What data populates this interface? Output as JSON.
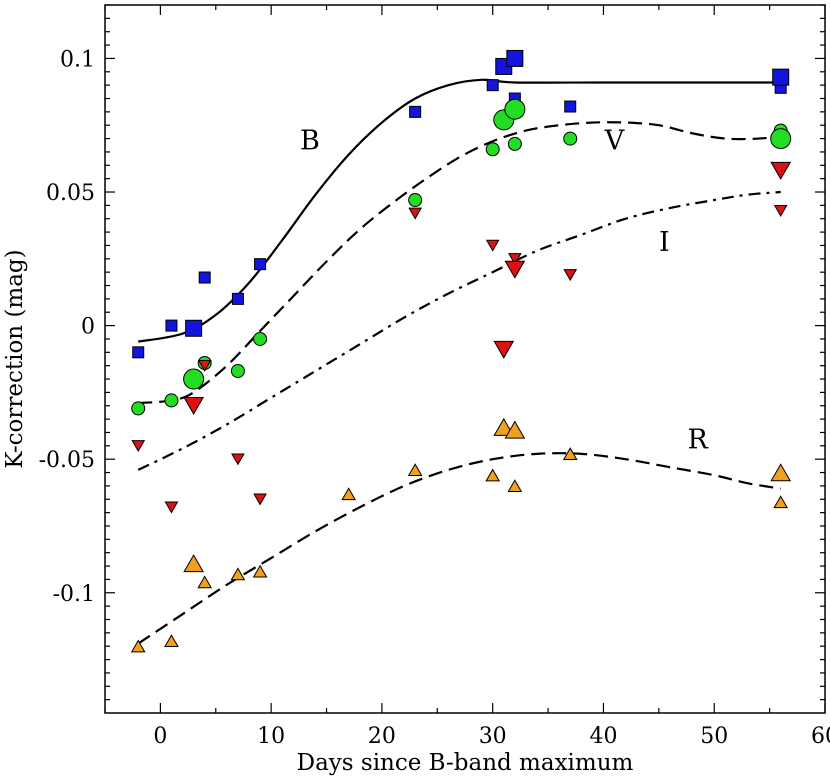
{
  "chart_data": {
    "type": "scatter",
    "title": "",
    "xlabel": "Days since B-band maximum",
    "ylabel": "K-correction (mag)",
    "xlim": [
      -5,
      60
    ],
    "ylim": [
      -0.145,
      0.12
    ],
    "x_ticks": [
      0,
      10,
      20,
      30,
      40,
      50,
      60
    ],
    "x_tick_labels": [
      "0",
      "10",
      "20",
      "30",
      "40",
      "50",
      "60"
    ],
    "y_ticks": [
      -0.1,
      -0.05,
      0,
      0.05,
      0.1
    ],
    "y_tick_labels": [
      "-0.1",
      "-0.05",
      "0",
      "0.05",
      "0.1"
    ],
    "grid": false,
    "series": [
      {
        "name": "B",
        "marker": "square",
        "color": "#1414dc",
        "points_small": [
          [
            -2,
            -0.01
          ],
          [
            1,
            0.0
          ],
          [
            4,
            0.018
          ],
          [
            7,
            0.01
          ],
          [
            9,
            0.023
          ],
          [
            23,
            0.08
          ],
          [
            30,
            0.09
          ],
          [
            32,
            0.085
          ],
          [
            37,
            0.082
          ],
          [
            56,
            0.089
          ]
        ],
        "points_large": [
          [
            3,
            -0.001
          ],
          [
            31,
            0.097
          ],
          [
            32,
            0.1
          ],
          [
            56,
            0.093
          ]
        ],
        "fit_style": "solid",
        "fit": [
          [
            -2,
            -0.006
          ],
          [
            2,
            -0.003
          ],
          [
            5,
            0.004
          ],
          [
            8,
            0.016
          ],
          [
            11,
            0.032
          ],
          [
            14,
            0.049
          ],
          [
            17,
            0.064
          ],
          [
            20,
            0.076
          ],
          [
            23,
            0.085
          ],
          [
            26,
            0.09
          ],
          [
            29,
            0.092
          ],
          [
            32,
            0.091
          ],
          [
            40,
            0.091
          ],
          [
            50,
            0.091
          ],
          [
            56,
            0.091
          ]
        ]
      },
      {
        "name": "V",
        "marker": "circle",
        "color": "#22dd22",
        "points_small": [
          [
            -2,
            -0.031
          ],
          [
            1,
            -0.028
          ],
          [
            4,
            -0.014
          ],
          [
            7,
            -0.017
          ],
          [
            9,
            -0.005
          ],
          [
            23,
            0.047
          ],
          [
            30,
            0.066
          ],
          [
            32,
            0.068
          ],
          [
            37,
            0.07
          ],
          [
            56,
            0.073
          ]
        ],
        "points_large": [
          [
            3,
            -0.02
          ],
          [
            31,
            0.077
          ],
          [
            32,
            0.081
          ],
          [
            56,
            0.07
          ]
        ],
        "fit_style": "dashed",
        "fit": [
          [
            -2,
            -0.029
          ],
          [
            1,
            -0.028
          ],
          [
            3,
            -0.025
          ],
          [
            6,
            -0.015
          ],
          [
            9,
            -0.002
          ],
          [
            12,
            0.011
          ],
          [
            15,
            0.024
          ],
          [
            18,
            0.036
          ],
          [
            21,
            0.046
          ],
          [
            24,
            0.055
          ],
          [
            27,
            0.063
          ],
          [
            30,
            0.069
          ],
          [
            33,
            0.073
          ],
          [
            36,
            0.075
          ],
          [
            39,
            0.076
          ],
          [
            42,
            0.076
          ],
          [
            45,
            0.075
          ],
          [
            48,
            0.072
          ],
          [
            51,
            0.07
          ],
          [
            54,
            0.07
          ],
          [
            56,
            0.071
          ]
        ]
      },
      {
        "name": "I",
        "marker": "triangle-down",
        "color": "#dd1111",
        "points_small": [
          [
            -2,
            -0.045
          ],
          [
            1,
            -0.068
          ],
          [
            4,
            -0.015
          ],
          [
            7,
            -0.05
          ],
          [
            9,
            -0.065
          ],
          [
            23,
            0.042
          ],
          [
            30,
            0.03
          ],
          [
            32,
            0.025
          ],
          [
            37,
            0.019
          ],
          [
            56,
            0.043
          ]
        ],
        "points_large": [
          [
            3,
            -0.03
          ],
          [
            31,
            -0.009
          ],
          [
            32,
            0.021
          ],
          [
            56,
            0.058
          ]
        ],
        "fit_style": "dashdot",
        "fit": [
          [
            -2,
            -0.054
          ],
          [
            2,
            -0.046
          ],
          [
            6,
            -0.037
          ],
          [
            10,
            -0.027
          ],
          [
            14,
            -0.017
          ],
          [
            18,
            -0.007
          ],
          [
            22,
            0.003
          ],
          [
            26,
            0.012
          ],
          [
            30,
            0.02
          ],
          [
            34,
            0.028
          ],
          [
            38,
            0.034
          ],
          [
            42,
            0.04
          ],
          [
            46,
            0.044
          ],
          [
            50,
            0.047
          ],
          [
            53,
            0.049
          ],
          [
            56,
            0.05
          ]
        ]
      },
      {
        "name": "R",
        "marker": "triangle-up",
        "color": "#f0a020",
        "points_small": [
          [
            -2,
            -0.12
          ],
          [
            1,
            -0.118
          ],
          [
            4,
            -0.096
          ],
          [
            7,
            -0.093
          ],
          [
            9,
            -0.092
          ],
          [
            17,
            -0.063
          ],
          [
            23,
            -0.054
          ],
          [
            30,
            -0.056
          ],
          [
            32,
            -0.06
          ],
          [
            37,
            -0.048
          ],
          [
            56,
            -0.066
          ]
        ],
        "points_large": [
          [
            3,
            -0.089
          ],
          [
            31,
            -0.038
          ],
          [
            32,
            -0.039
          ],
          [
            56,
            -0.055
          ]
        ],
        "fit_style": "dashed",
        "fit": [
          [
            -2,
            -0.119
          ],
          [
            2,
            -0.108
          ],
          [
            6,
            -0.097
          ],
          [
            10,
            -0.087
          ],
          [
            14,
            -0.077
          ],
          [
            18,
            -0.068
          ],
          [
            22,
            -0.06
          ],
          [
            26,
            -0.054
          ],
          [
            30,
            -0.05
          ],
          [
            34,
            -0.048
          ],
          [
            38,
            -0.048
          ],
          [
            42,
            -0.05
          ],
          [
            46,
            -0.053
          ],
          [
            50,
            -0.056
          ],
          [
            53,
            -0.059
          ],
          [
            56,
            -0.061
          ]
        ]
      }
    ],
    "annotations": [
      {
        "text": "B",
        "x": 13.5,
        "y": 0.066
      },
      {
        "text": "V",
        "x": 41.0,
        "y": 0.066
      },
      {
        "text": "I",
        "x": 45.5,
        "y": 0.028
      },
      {
        "text": "R",
        "x": 48.5,
        "y": -0.046
      }
    ]
  }
}
